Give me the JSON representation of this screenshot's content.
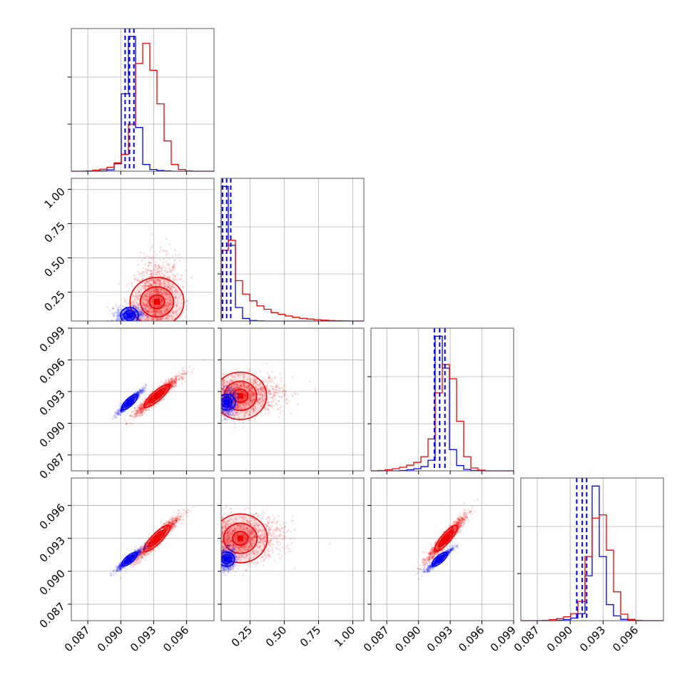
{
  "chart_data": {
    "type": "scatter",
    "subtype": "corner-plot",
    "title": "",
    "legend": "none",
    "grid": true,
    "colors": {
      "blue": "#0000ee",
      "red": "#ee0000",
      "grid": "#b0b0b0"
    },
    "params": [
      {
        "range": [
          0.0855,
          0.0985
        ],
        "ticks": [
          "0.087",
          "0.090",
          "0.093",
          "0.096"
        ]
      },
      {
        "range": [
          0.04,
          1.08
        ],
        "ticks": [
          "0.25",
          "0.50",
          "0.75",
          "1.00"
        ]
      },
      {
        "range": [
          0.0855,
          0.099
        ],
        "ticks": [
          "0.087",
          "0.090",
          "0.093",
          "0.096",
          "0.099"
        ]
      },
      {
        "range": [
          0.0855,
          0.0985
        ],
        "ticks": [
          "0.087",
          "0.090",
          "0.093",
          "0.096"
        ]
      }
    ],
    "series": [
      {
        "color": "blue",
        "mean": [
          0.0908,
          0.08,
          0.092,
          0.0911
        ],
        "sd": [
          0.0006,
          0.03,
          0.0006,
          0.0005
        ],
        "quantile_lines": [
          [
            0.0904,
            0.0908,
            0.0912
          ],
          [
            0.05,
            0.08,
            0.11
          ],
          [
            0.0915,
            0.092,
            0.0925
          ],
          [
            0.0906,
            0.0911,
            0.0915
          ]
        ]
      },
      {
        "color": "red",
        "mean": [
          0.0933,
          0.18,
          0.0926,
          0.093
        ],
        "sd": [
          0.001,
          0.15,
          0.0009,
          0.001
        ]
      }
    ],
    "histograms": [
      {
        "blue": [
          0,
          0,
          0,
          0,
          1,
          4,
          22,
          230,
          400,
          130,
          20,
          5,
          2,
          1,
          0,
          0,
          0,
          0,
          0,
          0
        ],
        "red": [
          0,
          0,
          1,
          3,
          6,
          12,
          25,
          50,
          140,
          320,
          380,
          300,
          200,
          90,
          20,
          5,
          1,
          0,
          0,
          0
        ]
      },
      {
        "blue": [
          800,
          450,
          80,
          15,
          3,
          1,
          0,
          0,
          0,
          0,
          0,
          0,
          0,
          0,
          0,
          0,
          0,
          0,
          0,
          0
        ],
        "red": [
          420,
          480,
          240,
          160,
          120,
          90,
          70,
          50,
          40,
          30,
          22,
          16,
          12,
          8,
          5,
          3,
          2,
          1,
          0,
          0
        ]
      },
      {
        "blue": [
          0,
          0,
          0,
          0,
          1,
          3,
          6,
          12,
          30,
          380,
          290,
          60,
          15,
          4,
          1,
          0,
          0,
          0,
          0,
          0
        ],
        "red": [
          0,
          1,
          3,
          6,
          10,
          16,
          24,
          40,
          90,
          220,
          300,
          260,
          140,
          40,
          8,
          2,
          0,
          0,
          0,
          0
        ]
      },
      {
        "blue": [
          0,
          0,
          0,
          0,
          0,
          1,
          3,
          8,
          22,
          140,
          420,
          200,
          50,
          15,
          4,
          1,
          0,
          0,
          0,
          0
        ],
        "red": [
          0,
          0,
          0,
          1,
          3,
          6,
          12,
          22,
          60,
          200,
          320,
          330,
          220,
          90,
          20,
          4,
          1,
          0,
          0,
          0
        ]
      }
    ],
    "scatter_panels": [
      {
        "x_param": 0,
        "y_param": 1
      },
      {
        "x_param": 0,
        "y_param": 2
      },
      {
        "x_param": 1,
        "y_param": 2
      },
      {
        "x_param": 0,
        "y_param": 3
      },
      {
        "x_param": 1,
        "y_param": 3
      },
      {
        "x_param": 2,
        "y_param": 3
      }
    ]
  }
}
